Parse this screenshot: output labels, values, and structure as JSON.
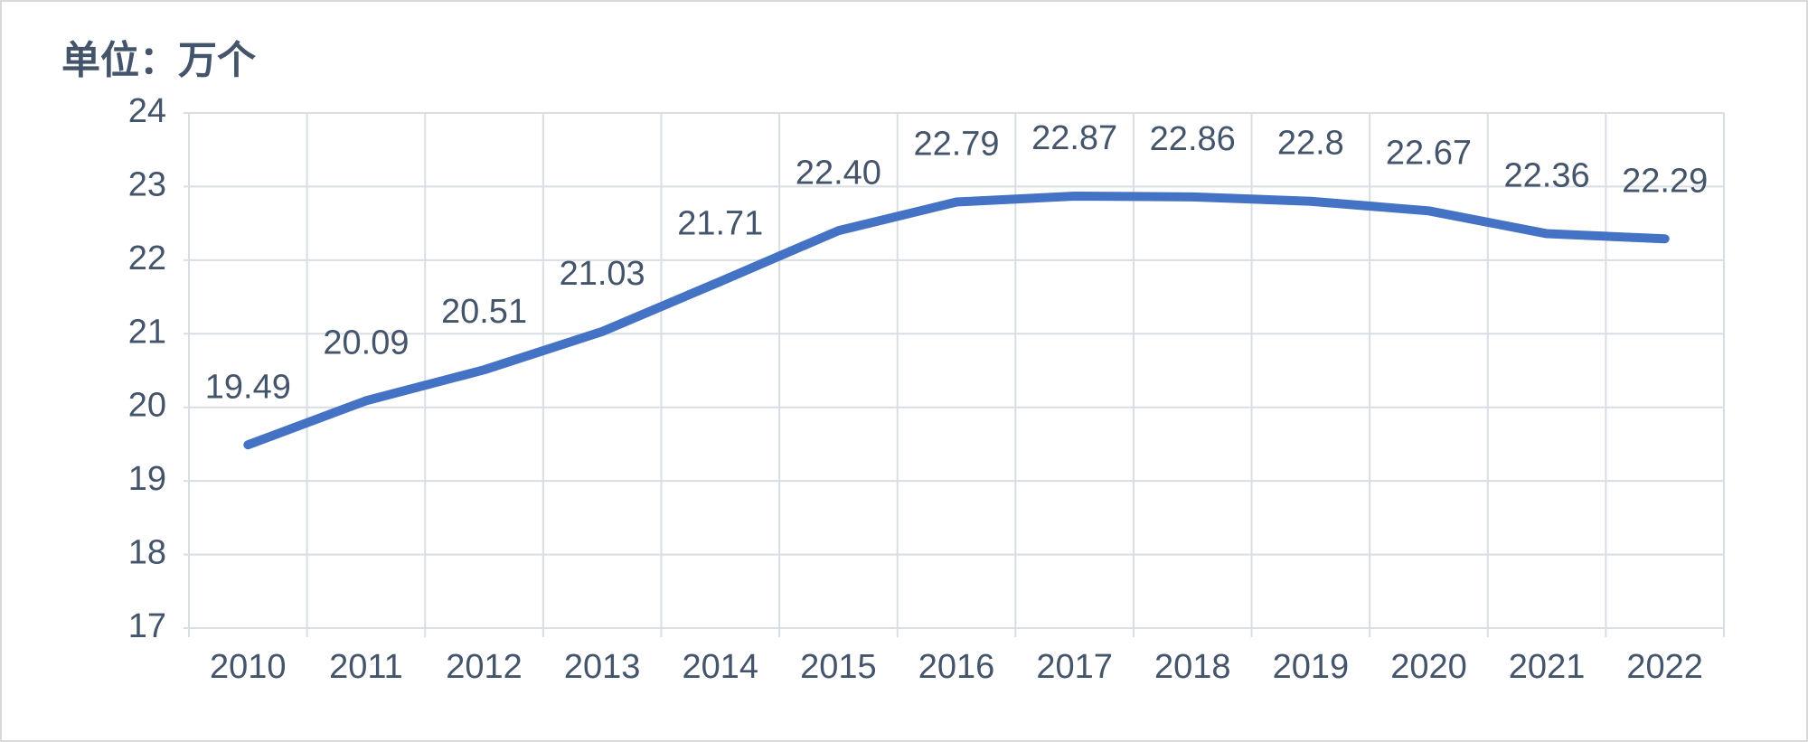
{
  "chart_data": {
    "type": "line",
    "title": "单位：万个",
    "categories": [
      "2010",
      "2011",
      "2012",
      "2013",
      "2014",
      "2015",
      "2016",
      "2017",
      "2018",
      "2019",
      "2020",
      "2021",
      "2022"
    ],
    "values": [
      19.49,
      20.09,
      20.51,
      21.03,
      21.71,
      22.4,
      22.79,
      22.87,
      22.86,
      22.8,
      22.67,
      22.36,
      22.29
    ],
    "value_labels": [
      "19.49",
      "20.09",
      "20.51",
      "21.03",
      "21.71",
      "22.40",
      "22.79",
      "22.87",
      "22.86",
      "22.8",
      "22.67",
      "22.36",
      "22.29"
    ],
    "color": "#4472c4",
    "ylim": [
      17,
      24
    ],
    "yticks": [
      17,
      18,
      19,
      20,
      21,
      22,
      23,
      24
    ],
    "grid": true
  }
}
